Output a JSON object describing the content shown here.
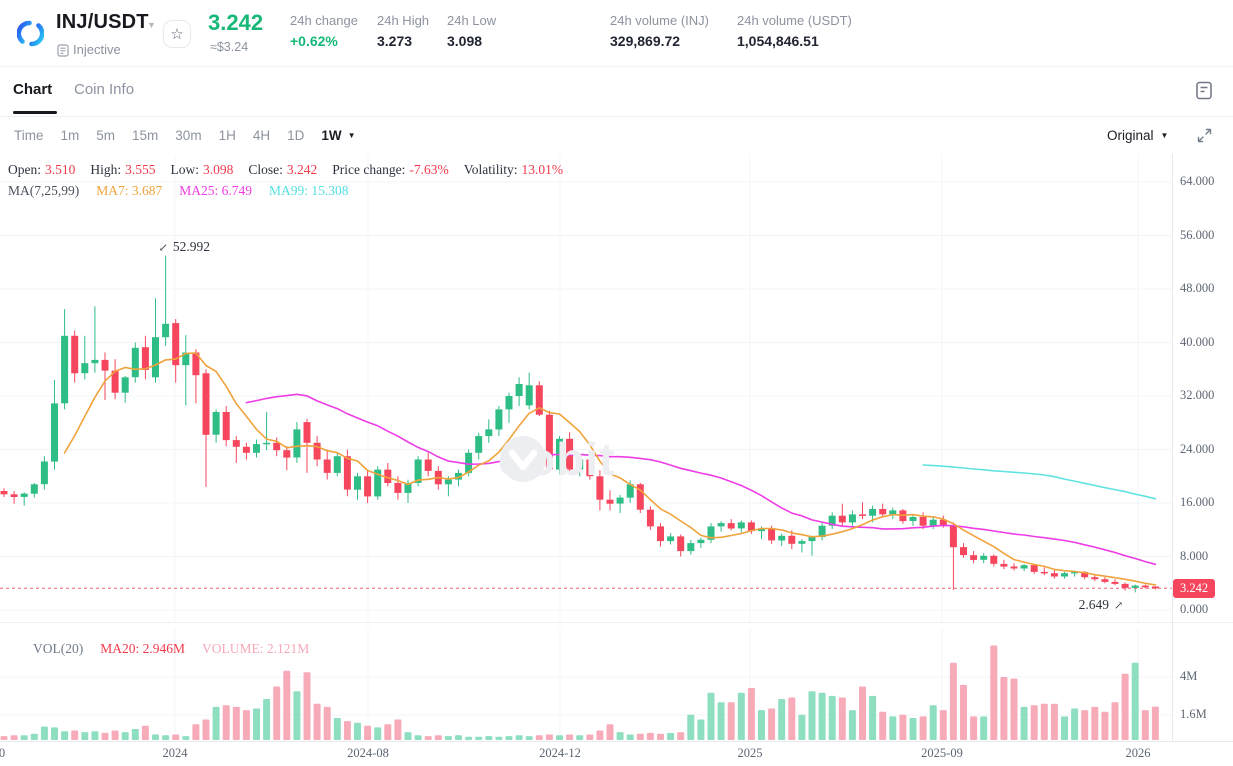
{
  "header": {
    "pair": "INJ/USDT",
    "network": "Injective",
    "price": "3.242",
    "price_usd": "≈$3.24",
    "stats": [
      {
        "label": "24h change",
        "value": "+0.62%",
        "positive": true
      },
      {
        "label": "24h High",
        "value": "3.273"
      },
      {
        "label": "24h Low",
        "value": "3.098"
      },
      {
        "label": "24h volume (INJ)",
        "value": "329,869.72"
      },
      {
        "label": "24h volume (USDT)",
        "value": "1,054,846.51"
      }
    ]
  },
  "tabs": {
    "chart": "Chart",
    "coin_info": "Coin Info"
  },
  "toolbar": {
    "time_label": "Time",
    "intervals": [
      "1m",
      "5m",
      "15m",
      "30m",
      "1H",
      "4H",
      "1D",
      "1W"
    ],
    "active_interval": "1W",
    "style_label": "Original"
  },
  "legend": {
    "ohlc": [
      {
        "label": "Open:",
        "value": "3.510"
      },
      {
        "label": "High:",
        "value": "3.555"
      },
      {
        "label": "Low:",
        "value": "3.098"
      },
      {
        "label": "Close:",
        "value": "3.242"
      },
      {
        "label": "Price change:",
        "value": "-7.63%"
      },
      {
        "label": "Volatility:",
        "value": "13.01%"
      }
    ],
    "ma_group": "MA(7,25,99)",
    "ma_items": [
      {
        "label": "MA7:",
        "value": "3.687",
        "color": "#f0a33c"
      },
      {
        "label": "MA25:",
        "value": "6.749",
        "color": "#ee3de6"
      },
      {
        "label": "MA99:",
        "value": "15.308",
        "color": "#53dfdf"
      }
    ]
  },
  "vol_legend": {
    "vol": "VOL(20)",
    "ma20": "MA20: 2.946M",
    "volume": "VOLUME: 2.121M"
  },
  "watermark_text": "oobit",
  "colors": {
    "up": "#2ebd85",
    "down": "#f6465d",
    "vol_up": "#8edec0",
    "vol_down": "#f7abb9",
    "ma7": "#f0a33c",
    "ma25": "#ee3de6",
    "ma99": "#62e3e3",
    "price_line": "#f6465d",
    "grid": "#f3f4f7",
    "header_green": "#16b877",
    "legend_red": "#f23a4c"
  },
  "chart_data": {
    "type": "candlestick+volume",
    "interval": "1W",
    "price_axis": {
      "min": 0,
      "max": 64,
      "step": 8,
      "labels": [
        {
          "value": 64,
          "label": "64.000"
        },
        {
          "value": 56,
          "label": "56.000"
        },
        {
          "value": 48,
          "label": "48.000"
        },
        {
          "value": 40,
          "label": "40.000"
        },
        {
          "value": 32,
          "label": "32.000"
        },
        {
          "value": 24,
          "label": "24.000"
        },
        {
          "value": 16,
          "label": "16.000"
        },
        {
          "value": 8,
          "label": "8.000"
        },
        {
          "value": 0,
          "label": "0.000"
        }
      ]
    },
    "volume_axis": {
      "labels": [
        {
          "value": 4,
          "label": "4M"
        },
        {
          "value": 1.6,
          "label": "1.6M"
        }
      ]
    },
    "x_ticks": [
      {
        "x": 2,
        "label": "0",
        "grid": false
      },
      {
        "x": 175,
        "label": "2024",
        "grid": true
      },
      {
        "x": 368,
        "label": "2024-08",
        "grid": true
      },
      {
        "x": 560,
        "label": "2024-12",
        "grid": true
      },
      {
        "x": 750,
        "label": "2025",
        "grid": true
      },
      {
        "x": 942,
        "label": "2025-09",
        "grid": true
      },
      {
        "x": 1138,
        "label": "2026",
        "grid": true
      }
    ],
    "price_line": {
      "price": 3.242,
      "label": "3.242"
    },
    "annotations": [
      {
        "type": "high",
        "index": 16,
        "price": 52.992,
        "text": "52.992",
        "arrow": "↙"
      },
      {
        "type": "low",
        "index": 112,
        "price": 2.649,
        "text": "2.649",
        "arrow": "↗"
      }
    ],
    "ma_windows": {
      "ma7": 7,
      "ma25": 25,
      "ma99": 99,
      "ma99_start_index": 91
    },
    "candles": [
      [
        17.8,
        18.2,
        16.9,
        17.3,
        0.25
      ],
      [
        17.3,
        17.8,
        15.9,
        16.9,
        0.3
      ],
      [
        16.9,
        17.6,
        15.6,
        17.4,
        0.3
      ],
      [
        17.4,
        19.0,
        16.8,
        18.8,
        0.4
      ],
      [
        18.8,
        23.0,
        18.0,
        22.2,
        0.85
      ],
      [
        22.2,
        34.4,
        21.0,
        30.9,
        0.8
      ],
      [
        30.9,
        45.0,
        30.0,
        41.0,
        0.55
      ],
      [
        41.0,
        41.8,
        34.0,
        35.4,
        0.6
      ],
      [
        35.4,
        41.0,
        34.5,
        36.9,
        0.5
      ],
      [
        36.9,
        45.4,
        35.5,
        37.4,
        0.55
      ],
      [
        37.4,
        38.5,
        31.4,
        35.8,
        0.45
      ],
      [
        35.8,
        37.5,
        31.5,
        32.5,
        0.6
      ],
      [
        32.5,
        35.0,
        31.0,
        34.8,
        0.5
      ],
      [
        34.8,
        40.0,
        34.0,
        39.2,
        0.7
      ],
      [
        39.3,
        41.0,
        34.5,
        35.9,
        0.9
      ],
      [
        34.8,
        46.6,
        34.0,
        40.8,
        0.35
      ],
      [
        40.8,
        52.992,
        39.5,
        42.8,
        0.3
      ],
      [
        42.9,
        43.5,
        34.0,
        36.6,
        0.35
      ],
      [
        36.6,
        41.1,
        30.6,
        38.5,
        0.25
      ],
      [
        38.5,
        39.0,
        30.9,
        35.1,
        1.0
      ],
      [
        35.4,
        36.0,
        18.4,
        26.2,
        1.3
      ],
      [
        26.2,
        30.0,
        25.0,
        29.6,
        2.1
      ],
      [
        29.6,
        30.5,
        24.5,
        25.4,
        2.2
      ],
      [
        25.4,
        26.0,
        22.0,
        24.4,
        2.1
      ],
      [
        24.4,
        25.0,
        22.5,
        23.5,
        1.9
      ],
      [
        23.5,
        25.5,
        22.8,
        24.8,
        2.0
      ],
      [
        24.8,
        29.6,
        23.9,
        25.0,
        2.6
      ],
      [
        25.0,
        25.8,
        23.0,
        23.9,
        3.4
      ],
      [
        23.9,
        24.5,
        20.9,
        22.8,
        4.4
      ],
      [
        22.8,
        28.1,
        22.0,
        27.0,
        3.1
      ],
      [
        28.1,
        28.6,
        20.5,
        25.0,
        4.3
      ],
      [
        25.0,
        26.0,
        21.5,
        22.5,
        2.3
      ],
      [
        22.5,
        24.0,
        19.5,
        20.5,
        2.1
      ],
      [
        20.5,
        23.5,
        20.0,
        23.0,
        1.4
      ],
      [
        23.0,
        24.0,
        17.0,
        18.0,
        1.2
      ],
      [
        18.0,
        20.5,
        16.5,
        20.0,
        1.1
      ],
      [
        20.0,
        21.0,
        16.0,
        17.0,
        0.9
      ],
      [
        17.0,
        21.5,
        16.5,
        21.0,
        0.8
      ],
      [
        21.0,
        22.0,
        18.5,
        19.0,
        1.0
      ],
      [
        19.0,
        20.0,
        16.5,
        17.5,
        1.3
      ],
      [
        17.5,
        19.5,
        16.0,
        19.0,
        0.5
      ],
      [
        19.0,
        23.0,
        18.5,
        22.5,
        0.3
      ],
      [
        22.5,
        23.5,
        20.0,
        20.8,
        0.25
      ],
      [
        20.8,
        21.5,
        18.0,
        18.8,
        0.3
      ],
      [
        18.8,
        20.0,
        17.0,
        19.5,
        0.25
      ],
      [
        19.5,
        21.0,
        18.5,
        20.5,
        0.3
      ],
      [
        20.5,
        24.0,
        20.0,
        23.5,
        0.2
      ],
      [
        23.5,
        26.5,
        22.5,
        26.0,
        0.2
      ],
      [
        26.0,
        28.5,
        25.0,
        27.0,
        0.25
      ],
      [
        27.0,
        30.5,
        26.0,
        30.0,
        0.2
      ],
      [
        30.0,
        32.5,
        28.0,
        32.0,
        0.25
      ],
      [
        32.0,
        34.8,
        30.5,
        33.8,
        0.3
      ],
      [
        30.6,
        35.5,
        30.0,
        33.6,
        0.25
      ],
      [
        33.6,
        34.2,
        29.0,
        29.2,
        0.3
      ],
      [
        29.2,
        29.8,
        20.6,
        21.0,
        0.35
      ],
      [
        21.0,
        26.0,
        20.3,
        25.6,
        0.3
      ],
      [
        25.6,
        26.6,
        20.5,
        21.0,
        0.35
      ],
      [
        21.0,
        23.2,
        20.0,
        22.5,
        0.3
      ],
      [
        22.5,
        23.0,
        19.5,
        20.0,
        0.35
      ],
      [
        20.0,
        20.9,
        14.9,
        16.5,
        0.6
      ],
      [
        16.5,
        17.9,
        14.9,
        15.9,
        1.0
      ],
      [
        15.9,
        17.2,
        14.5,
        16.8,
        0.5
      ],
      [
        16.8,
        19.4,
        16.0,
        18.8,
        0.35
      ],
      [
        18.8,
        19.0,
        14.5,
        15.0,
        0.4
      ],
      [
        15.0,
        15.5,
        12.0,
        12.5,
        0.45
      ],
      [
        12.5,
        13.0,
        9.5,
        10.3,
        0.4
      ],
      [
        10.3,
        11.5,
        9.8,
        11.0,
        0.45
      ],
      [
        11.0,
        11.3,
        8.0,
        8.8,
        0.5
      ],
      [
        8.8,
        10.5,
        8.3,
        10.0,
        1.6
      ],
      [
        10.0,
        10.8,
        9.3,
        10.5,
        1.3
      ],
      [
        10.5,
        13.0,
        10.0,
        12.5,
        3.0
      ],
      [
        12.5,
        13.3,
        11.7,
        13.0,
        2.4
      ],
      [
        13.0,
        13.6,
        11.9,
        12.2,
        2.4
      ],
      [
        12.2,
        13.4,
        11.6,
        13.1,
        3.0
      ],
      [
        13.1,
        13.4,
        11.4,
        11.8,
        3.3
      ],
      [
        11.8,
        12.5,
        10.6,
        12.2,
        1.9
      ],
      [
        12.2,
        12.6,
        9.9,
        10.4,
        2.0
      ],
      [
        10.4,
        11.4,
        9.6,
        11.1,
        2.6
      ],
      [
        11.1,
        11.9,
        9.1,
        9.9,
        2.7
      ],
      [
        9.9,
        10.6,
        8.6,
        10.3,
        1.6
      ],
      [
        10.3,
        11.1,
        8.1,
        10.9,
        3.1
      ],
      [
        10.9,
        13.1,
        10.4,
        12.6,
        3.0
      ],
      [
        12.6,
        14.6,
        12.1,
        14.1,
        2.8
      ],
      [
        14.1,
        15.9,
        12.6,
        13.1,
        2.7
      ],
      [
        13.1,
        14.9,
        12.6,
        14.3,
        1.9
      ],
      [
        14.3,
        16.1,
        13.6,
        14.1,
        3.4
      ],
      [
        14.1,
        15.6,
        13.1,
        15.1,
        2.8
      ],
      [
        15.1,
        15.9,
        13.9,
        14.3,
        1.8
      ],
      [
        14.3,
        15.3,
        13.6,
        14.9,
        1.5
      ],
      [
        14.9,
        15.1,
        12.9,
        13.3,
        1.6
      ],
      [
        13.3,
        14.3,
        12.6,
        13.9,
        1.4
      ],
      [
        13.9,
        14.6,
        12.1,
        12.6,
        1.5
      ],
      [
        12.6,
        13.9,
        12.1,
        13.5,
        2.2
      ],
      [
        13.5,
        14.1,
        12.3,
        12.7,
        1.9
      ],
      [
        12.7,
        13.1,
        3.0,
        9.4,
        4.9
      ],
      [
        9.4,
        10.0,
        7.8,
        8.2,
        3.5
      ],
      [
        8.2,
        8.8,
        7.0,
        7.5,
        1.5
      ],
      [
        7.5,
        8.5,
        7.0,
        8.1,
        1.5
      ],
      [
        8.1,
        8.3,
        6.5,
        6.9,
        6.0
      ],
      [
        6.9,
        7.5,
        6.1,
        6.5,
        4.0
      ],
      [
        6.5,
        7.0,
        5.9,
        6.2,
        3.9
      ],
      [
        6.2,
        6.9,
        5.8,
        6.7,
        2.1
      ],
      [
        6.7,
        6.9,
        5.4,
        5.7,
        2.2
      ],
      [
        5.7,
        6.4,
        5.2,
        5.5,
        2.3
      ],
      [
        5.5,
        6.0,
        4.7,
        5.0,
        2.3
      ],
      [
        5.0,
        5.7,
        4.7,
        5.5,
        1.5
      ],
      [
        5.5,
        5.9,
        5.0,
        5.7,
        2.0
      ],
      [
        5.7,
        5.8,
        4.6,
        4.9,
        1.9
      ],
      [
        4.9,
        5.3,
        4.3,
        4.6,
        2.1
      ],
      [
        4.6,
        4.9,
        4.0,
        4.2,
        1.8
      ],
      [
        4.2,
        4.6,
        3.7,
        3.9,
        2.4
      ],
      [
        3.9,
        4.1,
        2.9,
        3.3,
        4.2
      ],
      [
        3.3,
        3.8,
        2.649,
        3.65,
        4.9
      ],
      [
        3.65,
        3.8,
        3.2,
        3.4,
        1.9
      ],
      [
        3.51,
        3.555,
        3.098,
        3.242,
        2.121
      ]
    ]
  }
}
